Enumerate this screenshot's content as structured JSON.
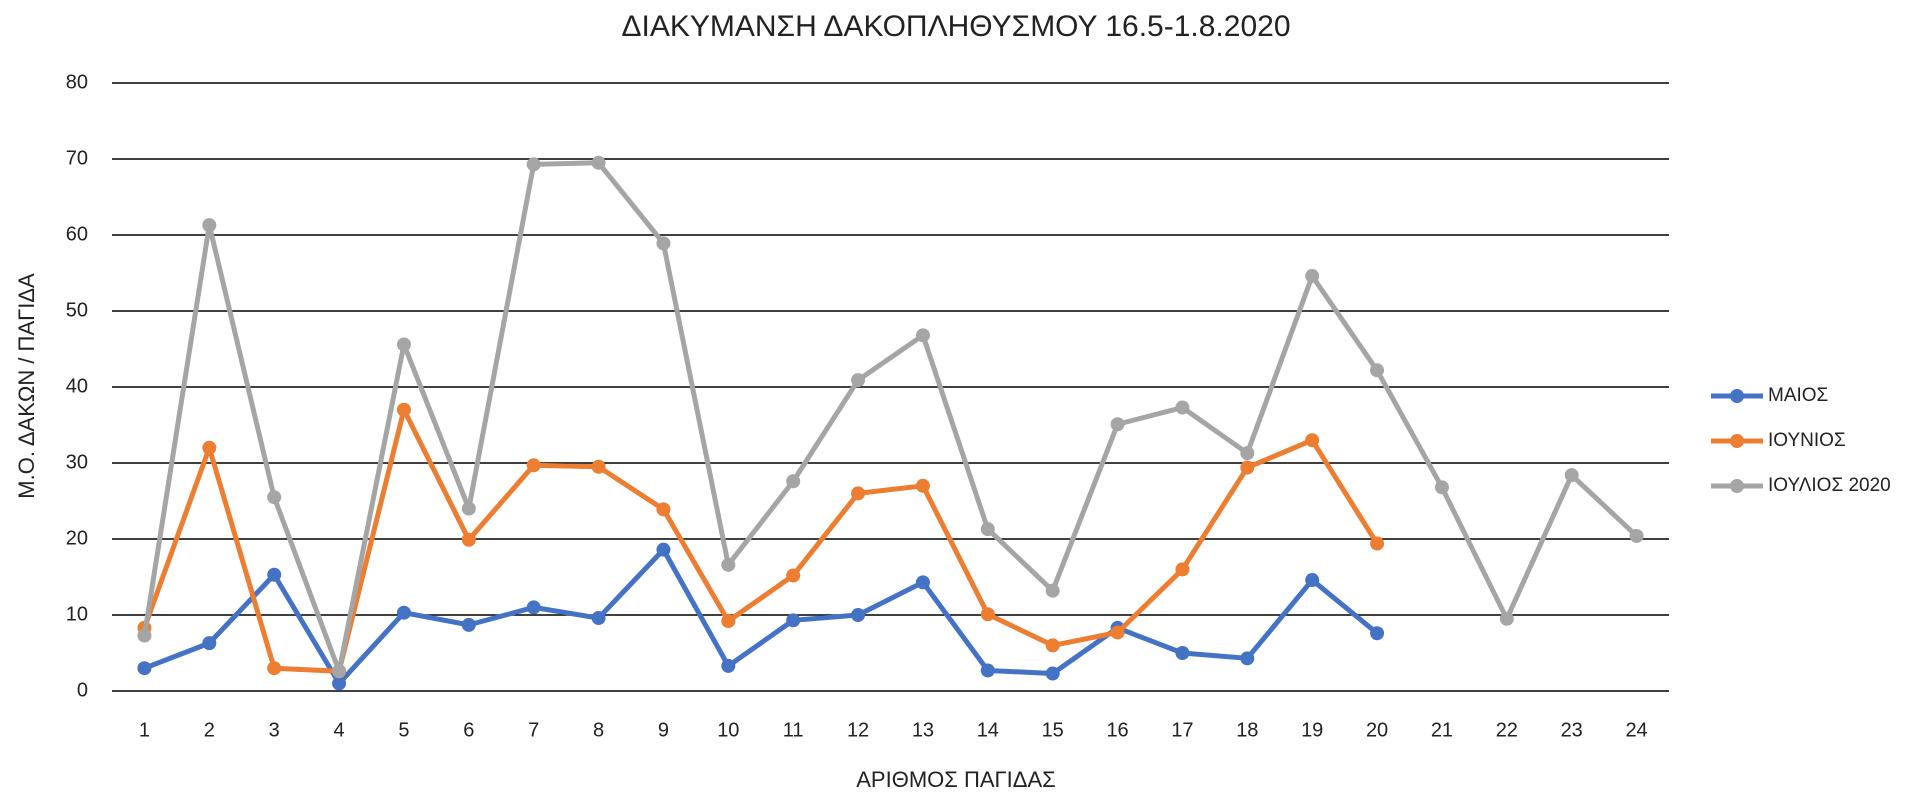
{
  "chart_data": {
    "type": "line",
    "title": "ΔΙΑΚΥΜΑΝΣΗ ΔΑΚΟΠΛΗΘΥΣΜΟΥ 16.5-1.8.2020",
    "x_label": "ΑΡΙΘΜΟΣ ΠΑΓΙΔΑΣ",
    "y_label": "Μ.Ο. ΔΑΚΩΝ / ΠΑΓΙΔΑ",
    "categories": [
      1,
      2,
      3,
      4,
      5,
      6,
      7,
      8,
      9,
      10,
      11,
      12,
      13,
      14,
      15,
      16,
      17,
      18,
      19,
      20,
      21,
      22,
      23,
      24
    ],
    "series": [
      {
        "name": "ΜΑΙΟΣ",
        "color": "#4472c4",
        "values": [
          3,
          6.3,
          15.3,
          1,
          10.3,
          8.7,
          11,
          9.6,
          18.6,
          3.3,
          9.3,
          10,
          14.3,
          2.7,
          2.3,
          8.3,
          5,
          4.3,
          14.6,
          7.6,
          null,
          null,
          null,
          null
        ]
      },
      {
        "name": "ΙΟΥΝΙΟΣ",
        "color": "#ed7d31",
        "values": [
          8.3,
          32,
          3,
          2.6,
          37,
          19.9,
          29.7,
          29.5,
          23.9,
          9.2,
          15.2,
          26,
          27,
          10.1,
          6,
          7.7,
          16,
          29.4,
          33,
          19.4,
          null,
          null,
          null,
          null
        ]
      },
      {
        "name": "ΙΟΥΛΙΟΣ 2020",
        "color": "#a5a5a5",
        "values": [
          7.3,
          61.3,
          25.5,
          2.6,
          45.6,
          24,
          69.3,
          69.5,
          58.9,
          16.6,
          27.6,
          40.9,
          46.8,
          21.3,
          13.2,
          35.1,
          37.3,
          31.3,
          54.6,
          42.2,
          26.8,
          9.5,
          28.4,
          20.4
        ]
      }
    ],
    "ylim": [
      0,
      80
    ],
    "yticks": [
      0,
      10,
      20,
      30,
      40,
      50,
      60,
      70,
      80
    ],
    "grid": true,
    "legend": "right"
  }
}
